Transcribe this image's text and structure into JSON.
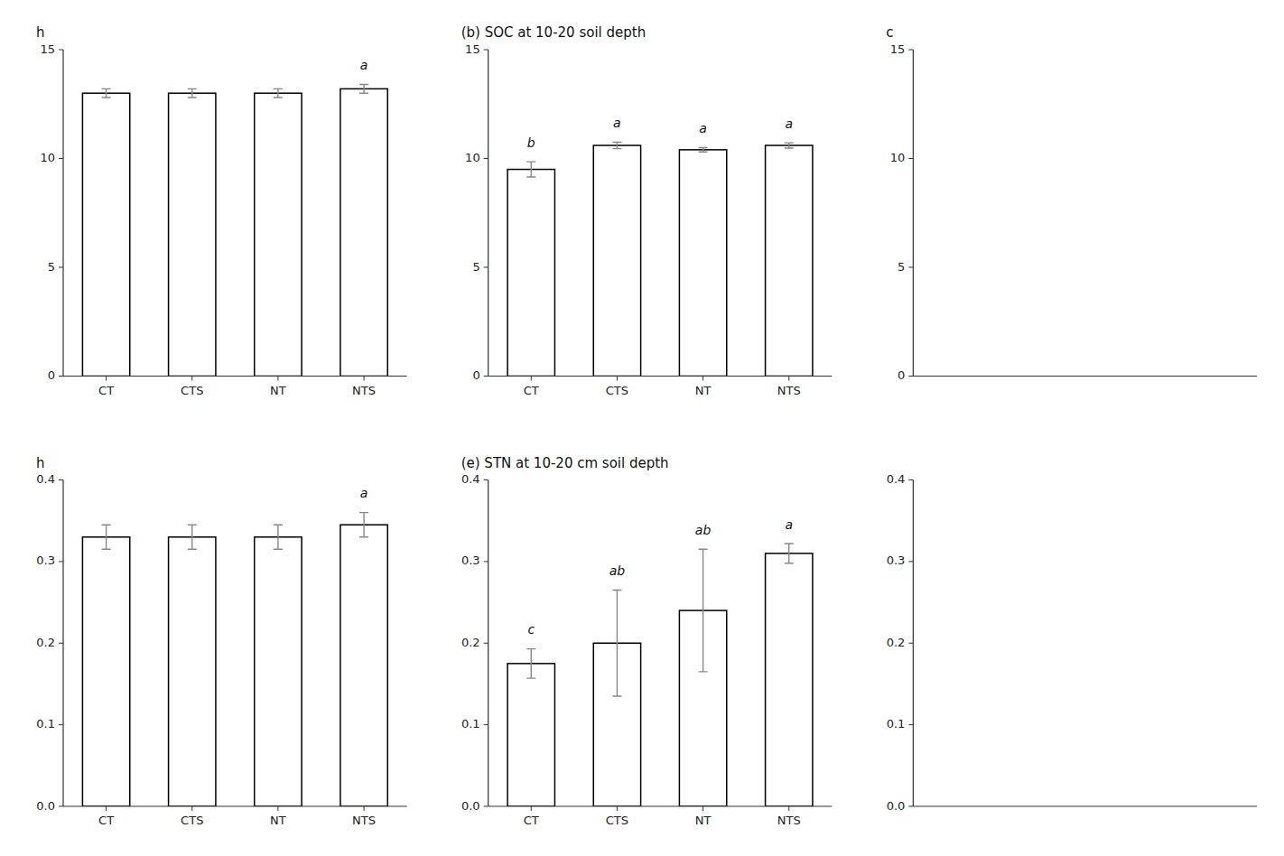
{
  "chart_data": [
    {
      "type": "bar",
      "title": "h",
      "categories": [
        "CT",
        "CTS",
        "NT",
        "NTS"
      ],
      "values": [
        13.0,
        13.0,
        13.0,
        13.2
      ],
      "errors": [
        0.2,
        0.2,
        0.2,
        0.2
      ],
      "letters": [
        null,
        null,
        null,
        "a"
      ],
      "color": "#ffffff",
      "ylim": [
        0,
        15
      ],
      "yticks": [
        0,
        5,
        10,
        15
      ],
      "grid": false
    },
    {
      "type": "bar",
      "title": "(b)   SOC at 10-20 soil depth",
      "categories": [
        "CT",
        "CTS",
        "NT",
        "NTS"
      ],
      "values": [
        9.5,
        10.6,
        10.4,
        10.6
      ],
      "errors": [
        0.35,
        0.15,
        0.1,
        0.12
      ],
      "letters": [
        "b",
        "a",
        "a",
        "a"
      ],
      "color": "#ffffff",
      "ylim": [
        0,
        15
      ],
      "yticks": [
        0,
        5,
        10,
        15
      ],
      "grid": false
    },
    {
      "type": "bar",
      "title": "c",
      "ylim": [
        0,
        15
      ],
      "yticks": [
        0,
        5,
        10,
        15
      ],
      "grid": false,
      "tick_labels": "y"
    },
    {
      "type": "bar",
      "title": "h",
      "categories": [
        "CT",
        "CTS",
        "NT",
        "NTS"
      ],
      "values": [
        0.33,
        0.33,
        0.33,
        0.345
      ],
      "errors": [
        0.015,
        0.015,
        0.015,
        0.015
      ],
      "letters": [
        null,
        null,
        null,
        "a"
      ],
      "color": "#ffffff",
      "ylim": [
        0.0,
        0.4
      ],
      "yticks": [
        {
          "value": 0.0,
          "label": "0.0"
        },
        0.1,
        0.2,
        0.3,
        0.4
      ],
      "grid": false
    },
    {
      "type": "bar",
      "title": "(e)  STN at 10-20 cm soil depth",
      "categories": [
        "CT",
        "CTS",
        "NT",
        "NTS"
      ],
      "values": [
        0.175,
        0.2,
        0.24,
        0.31
      ],
      "errors": [
        0.018,
        0.065,
        0.075,
        0.012
      ],
      "letters": [
        "c",
        "ab",
        "ab",
        "a"
      ],
      "color": "#ffffff",
      "ylim": [
        0.0,
        0.4
      ],
      "yticks": [
        {
          "value": 0.0,
          "label": "0.0"
        },
        0.1,
        0.2,
        0.3,
        0.4
      ],
      "grid": false
    },
    {
      "type": "bar",
      "ylim": [
        0.0,
        0.4
      ],
      "yticks": [
        {
          "value": 0.0,
          "label": "0.0"
        },
        0.1,
        0.2,
        0.3,
        0.4
      ],
      "grid": false,
      "tick_labels": "y"
    }
  ]
}
